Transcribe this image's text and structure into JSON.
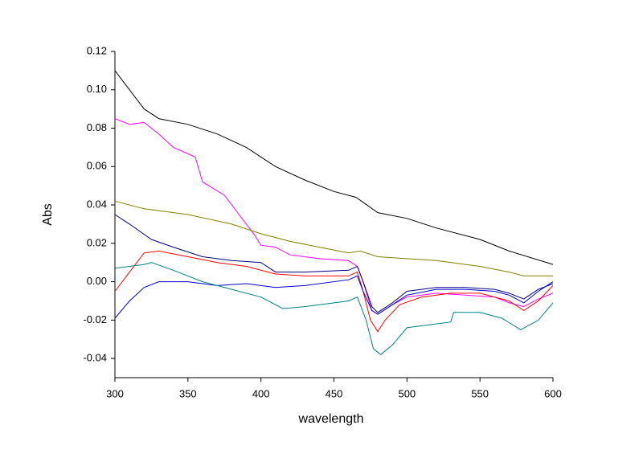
{
  "chart_data": {
    "type": "line",
    "xlabel": "wavelength",
    "ylabel": "Abs",
    "xlim": [
      300,
      600
    ],
    "xticks": [
      300,
      350,
      400,
      450,
      500,
      550,
      600
    ],
    "ylim": [
      -0.05,
      0.12
    ],
    "yticks": [
      {
        "value": -0.04,
        "label": "-0.04"
      },
      {
        "value": -0.02,
        "label": "-0.02"
      },
      {
        "value": 0,
        "label": "0.00"
      },
      {
        "value": 0.02,
        "label": "0.02"
      },
      {
        "value": 0.04,
        "label": "0.04"
      },
      {
        "value": 0.06,
        "label": "0.06"
      },
      {
        "value": 0.08,
        "label": "0.08"
      },
      {
        "value": 0.1,
        "label": "0.10"
      },
      {
        "value": 0.12,
        "label": "0.12"
      }
    ],
    "series": [
      {
        "color": "#000000",
        "x": [
          300,
          320,
          330,
          350,
          370,
          390,
          410,
          430,
          450,
          465,
          480,
          500,
          520,
          550,
          570,
          600
        ],
        "values": [
          0.11,
          0.09,
          0.085,
          0.082,
          0.077,
          0.07,
          0.06,
          0.053,
          0.047,
          0.044,
          0.036,
          0.033,
          0.028,
          0.022,
          0.016,
          0.009
        ]
      },
      {
        "color": "#ff00ff",
        "x": [
          300,
          310,
          320,
          330,
          340,
          355,
          360,
          375,
          385,
          395,
          400,
          410,
          420,
          440,
          460,
          466,
          470,
          476,
          480,
          490,
          500,
          520,
          540,
          560,
          570,
          580,
          590,
          600
        ],
        "values": [
          0.085,
          0.082,
          0.083,
          0.077,
          0.07,
          0.065,
          0.052,
          0.045,
          0.035,
          0.025,
          0.019,
          0.018,
          0.014,
          0.012,
          0.011,
          0.008,
          0,
          -0.015,
          -0.017,
          -0.012,
          -0.008,
          -0.006,
          -0.007,
          -0.008,
          -0.011,
          -0.013,
          -0.009,
          -0.006
        ]
      },
      {
        "color": "#808000",
        "x": [
          300,
          320,
          350,
          380,
          400,
          420,
          440,
          460,
          468,
          480,
          500,
          520,
          550,
          570,
          580,
          600
        ],
        "values": [
          0.042,
          0.038,
          0.035,
          0.03,
          0.025,
          0.021,
          0.018,
          0.015,
          0.016,
          0.013,
          0.012,
          0.011,
          0.008,
          0.005,
          0.003,
          0.003
        ]
      },
      {
        "color": "#000080",
        "x": [
          300,
          310,
          325,
          340,
          360,
          380,
          400,
          410,
          430,
          460,
          466,
          470,
          476,
          480,
          490,
          500,
          520,
          540,
          560,
          570,
          580,
          590,
          600
        ],
        "values": [
          0.035,
          0.03,
          0.022,
          0.018,
          0.013,
          0.011,
          0.01,
          0.005,
          0.005,
          0.006,
          0.008,
          0,
          -0.013,
          -0.016,
          -0.011,
          -0.005,
          -0.003,
          -0.003,
          -0.004,
          -0.006,
          -0.009,
          -0.004,
          -0.001
        ]
      },
      {
        "color": "#ff0000",
        "x": [
          300,
          310,
          320,
          330,
          350,
          370,
          390,
          410,
          430,
          460,
          466,
          470,
          475,
          480,
          485,
          495,
          510,
          530,
          550,
          570,
          580,
          590,
          600
        ],
        "values": [
          -0.005,
          0.005,
          0.015,
          0.016,
          0.013,
          0.01,
          0.008,
          0.004,
          0.003,
          0.003,
          0.005,
          -0.005,
          -0.02,
          -0.026,
          -0.02,
          -0.012,
          -0.008,
          -0.006,
          -0.006,
          -0.01,
          -0.015,
          -0.01,
          -0.002
        ]
      },
      {
        "color": "#0000cc",
        "x": [
          300,
          310,
          320,
          330,
          350,
          370,
          390,
          410,
          430,
          460,
          466,
          470,
          476,
          480,
          490,
          500,
          520,
          540,
          560,
          570,
          580,
          590,
          600
        ],
        "values": [
          -0.019,
          -0.01,
          -0.003,
          0,
          0,
          -0.002,
          -0.001,
          -0.003,
          -0.002,
          0.001,
          0.003,
          -0.005,
          -0.015,
          -0.017,
          -0.012,
          -0.007,
          -0.004,
          -0.004,
          -0.005,
          -0.007,
          -0.011,
          -0.005,
          0
        ]
      },
      {
        "color": "#008080",
        "x": [
          300,
          320,
          325,
          340,
          360,
          380,
          400,
          415,
          430,
          460,
          466,
          472,
          477,
          482,
          490,
          500,
          520,
          530,
          532,
          550,
          565,
          578,
          590,
          600
        ],
        "values": [
          0.007,
          0.009,
          0.01,
          0.006,
          0,
          -0.004,
          -0.008,
          -0.014,
          -0.013,
          -0.01,
          -0.008,
          -0.02,
          -0.035,
          -0.038,
          -0.033,
          -0.024,
          -0.022,
          -0.021,
          -0.016,
          -0.016,
          -0.019,
          -0.025,
          -0.02,
          -0.011
        ]
      }
    ]
  }
}
